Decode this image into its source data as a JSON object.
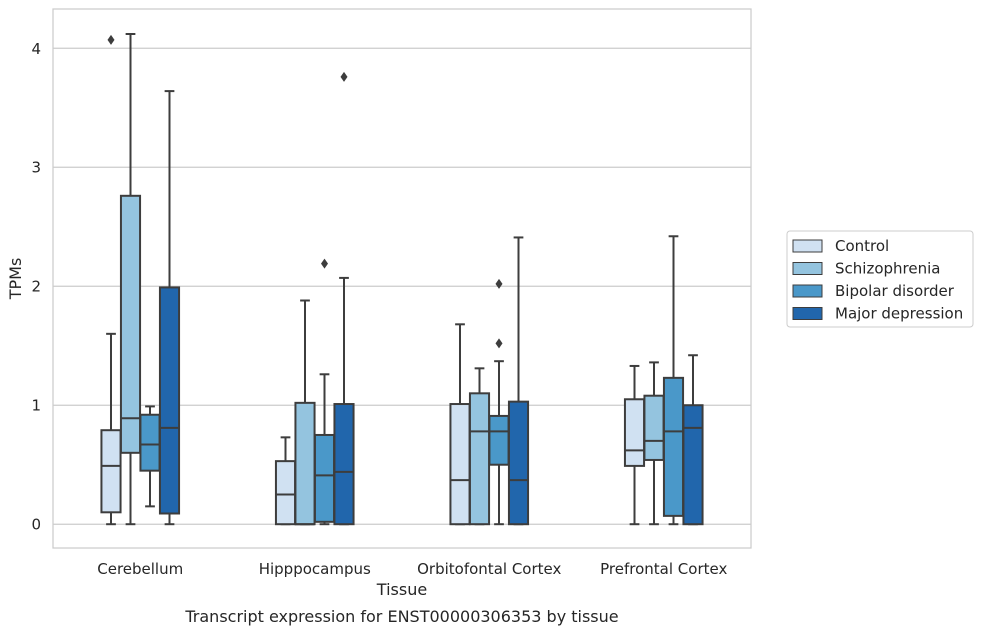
{
  "caption": "Transcript expression for ENST00000306353 by tissue",
  "chart_data": {
    "type": "box",
    "xlabel": "Tissue",
    "ylabel": "TPMs",
    "ylim": [
      -0.2,
      4.33
    ],
    "yticks": [
      0,
      1,
      2,
      3,
      4
    ],
    "grid": true,
    "legend_position": "right",
    "categories": [
      "Cerebellum",
      "Hipppocampus",
      "Orbitofontal Cortex",
      "Prefrontal Cortex"
    ],
    "series": [
      {
        "name": "Control",
        "color": "#d0e1f2",
        "boxes": [
          {
            "whisker_low": 0.0,
            "q1": 0.1,
            "median": 0.49,
            "q3": 0.79,
            "whisker_high": 1.6,
            "outliers": [
              4.07
            ]
          },
          {
            "whisker_low": 0.0,
            "q1": 0.0,
            "median": 0.25,
            "q3": 0.53,
            "whisker_high": 0.73,
            "outliers": []
          },
          {
            "whisker_low": 0.0,
            "q1": 0.0,
            "median": 0.37,
            "q3": 1.01,
            "whisker_high": 1.68,
            "outliers": []
          },
          {
            "whisker_low": 0.0,
            "q1": 0.49,
            "median": 0.62,
            "q3": 1.05,
            "whisker_high": 1.33,
            "outliers": []
          }
        ]
      },
      {
        "name": "Schizophrenia",
        "color": "#94c4df",
        "boxes": [
          {
            "whisker_low": 0.0,
            "q1": 0.6,
            "median": 0.89,
            "q3": 2.76,
            "whisker_high": 4.12,
            "outliers": []
          },
          {
            "whisker_low": 0.0,
            "q1": 0.0,
            "median": 0.0,
            "q3": 1.02,
            "whisker_high": 1.88,
            "outliers": []
          },
          {
            "whisker_low": 0.0,
            "q1": 0.0,
            "median": 0.78,
            "q3": 1.1,
            "whisker_high": 1.31,
            "outliers": []
          },
          {
            "whisker_low": 0.0,
            "q1": 0.54,
            "median": 0.7,
            "q3": 1.08,
            "whisker_high": 1.36,
            "outliers": []
          }
        ]
      },
      {
        "name": "Bipolar disorder",
        "color": "#4a98c9",
        "boxes": [
          {
            "whisker_low": 0.15,
            "q1": 0.45,
            "median": 0.67,
            "q3": 0.92,
            "whisker_high": 0.99,
            "outliers": []
          },
          {
            "whisker_low": 0.0,
            "q1": 0.02,
            "median": 0.41,
            "q3": 0.75,
            "whisker_high": 1.26,
            "outliers": [
              2.19
            ]
          },
          {
            "whisker_low": 0.0,
            "q1": 0.5,
            "median": 0.78,
            "q3": 0.91,
            "whisker_high": 1.37,
            "outliers": [
              1.52,
              2.02
            ]
          },
          {
            "whisker_low": 0.0,
            "q1": 0.07,
            "median": 0.78,
            "q3": 1.23,
            "whisker_high": 2.42,
            "outliers": []
          }
        ]
      },
      {
        "name": "Major depression",
        "color": "#2166ac",
        "boxes": [
          {
            "whisker_low": 0.0,
            "q1": 0.09,
            "median": 0.81,
            "q3": 1.99,
            "whisker_high": 3.64,
            "outliers": []
          },
          {
            "whisker_low": 0.0,
            "q1": 0.0,
            "median": 0.44,
            "q3": 1.01,
            "whisker_high": 2.07,
            "outliers": [
              3.76
            ]
          },
          {
            "whisker_low": 0.0,
            "q1": 0.0,
            "median": 0.37,
            "q3": 1.03,
            "whisker_high": 2.41,
            "outliers": []
          },
          {
            "whisker_low": 0.0,
            "q1": 0.0,
            "median": 0.81,
            "q3": 1.0,
            "whisker_high": 1.42,
            "outliers": []
          }
        ]
      }
    ]
  }
}
